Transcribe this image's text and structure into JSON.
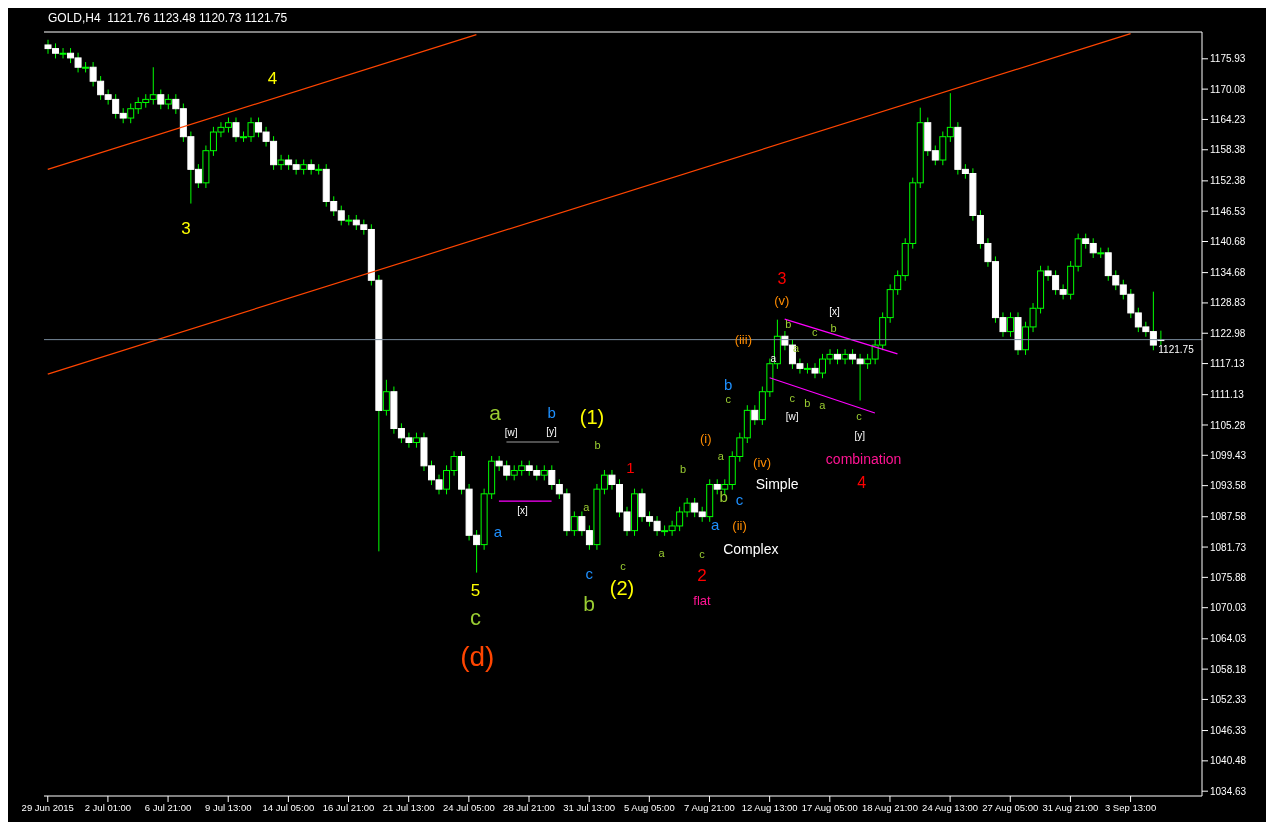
{
  "chart_data": {
    "type": "candlestick",
    "title": "GOLD,H4  1121.76 1123.48 1120.73 1121.75",
    "color": "#00ff00",
    "categories": [
      "29 Jun 2015",
      null,
      null,
      null,
      null,
      null,
      null,
      null,
      "2 Jul 01:00",
      null,
      null,
      null,
      null,
      null,
      null,
      null,
      "6 Jul 21:00",
      null,
      null,
      null,
      null,
      null,
      null,
      null,
      "9 Jul 13:00",
      null,
      null,
      null,
      null,
      null,
      null,
      null,
      "14 Jul 05:00",
      null,
      null,
      null,
      null,
      null,
      null,
      null,
      "16 Jul 21:00",
      null,
      null,
      null,
      null,
      null,
      null,
      null,
      "21 Jul 13:00",
      null,
      null,
      null,
      null,
      null,
      null,
      null,
      "24 Jul 05:00",
      null,
      null,
      null,
      null,
      null,
      null,
      null,
      "28 Jul 21:00",
      null,
      null,
      null,
      null,
      null,
      null,
      null,
      "31 Jul 13:00",
      null,
      null,
      null,
      null,
      null,
      null,
      null,
      "5 Aug 05:00",
      null,
      null,
      null,
      null,
      null,
      null,
      null,
      "7 Aug 21:00",
      null,
      null,
      null,
      null,
      null,
      null,
      null,
      "12 Aug 13:00",
      null,
      null,
      null,
      null,
      null,
      null,
      null,
      "17 Aug 05:00",
      null,
      null,
      null,
      null,
      null,
      null,
      null,
      "18 Aug 21:00",
      null,
      null,
      null,
      null,
      null,
      null,
      null,
      "24 Aug 13:00",
      null,
      null,
      null,
      null,
      null,
      null,
      null,
      "27 Aug 05:00",
      null,
      null,
      null,
      null,
      null,
      null,
      null,
      "31 Aug 21:00",
      null,
      null,
      null,
      null,
      null,
      null,
      null,
      "3 Sep 13:00",
      null,
      null,
      null,
      null
    ],
    "ohlc": [
      [
        1178.6,
        1179.6,
        1176.9,
        1177.9
      ],
      [
        1177.9,
        1178.9,
        1176.0,
        1177.0
      ],
      [
        1177.0,
        1178.0,
        1176.0,
        1177.0
      ],
      [
        1177.0,
        1178.0,
        1175.1,
        1176.1
      ],
      [
        1176.1,
        1177.1,
        1173.3,
        1174.3
      ],
      [
        1174.3,
        1175.3,
        1173.3,
        1174.3
      ],
      [
        1174.3,
        1175.3,
        1170.6,
        1171.6
      ],
      [
        1171.6,
        1172.6,
        1168.0,
        1169.0
      ],
      [
        1169.0,
        1170.0,
        1167.1,
        1168.1
      ],
      [
        1168.1,
        1169.1,
        1164.4,
        1165.4
      ],
      [
        1165.4,
        1166.4,
        1163.5,
        1164.5
      ],
      [
        1164.5,
        1167.3,
        1163.5,
        1166.3
      ],
      [
        1166.3,
        1168.5,
        1165.3,
        1167.5
      ],
      [
        1167.5,
        1169.1,
        1166.5,
        1168.1
      ],
      [
        1168.1,
        1174.3,
        1167.1,
        1169.0
      ],
      [
        1169.0,
        1170.0,
        1166.2,
        1167.2
      ],
      [
        1167.2,
        1169.1,
        1166.2,
        1168.1
      ],
      [
        1168.1,
        1169.1,
        1165.3,
        1166.3
      ],
      [
        1166.3,
        1167.3,
        1159.9,
        1160.9
      ],
      [
        1160.9,
        1161.9,
        1148.0,
        1154.6
      ],
      [
        1154.6,
        1155.6,
        1151.0,
        1152.0
      ],
      [
        1152.0,
        1159.2,
        1151.0,
        1158.2
      ],
      [
        1158.2,
        1162.8,
        1157.2,
        1161.8
      ],
      [
        1161.8,
        1163.7,
        1160.8,
        1162.7
      ],
      [
        1162.7,
        1164.6,
        1161.7,
        1163.6
      ],
      [
        1163.6,
        1164.6,
        1159.9,
        1160.9
      ],
      [
        1160.9,
        1161.9,
        1159.9,
        1160.9
      ],
      [
        1160.9,
        1164.6,
        1159.9,
        1163.6
      ],
      [
        1163.6,
        1164.6,
        1160.8,
        1161.8
      ],
      [
        1161.8,
        1162.8,
        1159.0,
        1160.0
      ],
      [
        1160.0,
        1161.0,
        1154.5,
        1155.5
      ],
      [
        1155.5,
        1157.4,
        1154.5,
        1156.4
      ],
      [
        1156.4,
        1157.4,
        1154.5,
        1155.5
      ],
      [
        1155.5,
        1156.5,
        1153.6,
        1154.6
      ],
      [
        1154.6,
        1156.5,
        1153.6,
        1155.5
      ],
      [
        1155.5,
        1156.5,
        1153.6,
        1154.6
      ],
      [
        1154.6,
        1155.6,
        1153.6,
        1154.6
      ],
      [
        1154.6,
        1155.6,
        1147.4,
        1148.4
      ],
      [
        1148.4,
        1149.4,
        1145.6,
        1146.6
      ],
      [
        1146.6,
        1147.6,
        1143.8,
        1144.8
      ],
      [
        1144.8,
        1145.8,
        1143.8,
        1144.8
      ],
      [
        1144.8,
        1145.8,
        1142.9,
        1143.9
      ],
      [
        1143.9,
        1144.9,
        1142.0,
        1143.0
      ],
      [
        1143.0,
        1144.0,
        1132.2,
        1133.2
      ],
      [
        1133.2,
        1134.2,
        1080.9,
        1108.1
      ],
      [
        1108.1,
        1114.0,
        1107.1,
        1111.7
      ],
      [
        1111.7,
        1112.7,
        1103.6,
        1104.6
      ],
      [
        1104.6,
        1105.6,
        1101.8,
        1102.8
      ],
      [
        1102.8,
        1103.8,
        1100.9,
        1101.9
      ],
      [
        1101.9,
        1103.8,
        1100.9,
        1102.8
      ],
      [
        1102.8,
        1103.8,
        1096.4,
        1097.4
      ],
      [
        1097.4,
        1098.4,
        1093.7,
        1094.7
      ],
      [
        1094.7,
        1095.7,
        1091.9,
        1092.9
      ],
      [
        1092.9,
        1097.5,
        1091.9,
        1096.5
      ],
      [
        1096.5,
        1100.2,
        1095.5,
        1099.2
      ],
      [
        1099.2,
        1100.2,
        1091.9,
        1092.9
      ],
      [
        1092.9,
        1093.9,
        1083.0,
        1084.0
      ],
      [
        1084.0,
        1085.0,
        1076.8,
        1082.2
      ],
      [
        1082.2,
        1093.0,
        1081.2,
        1092.0
      ],
      [
        1092.0,
        1099.3,
        1091.0,
        1098.3
      ],
      [
        1098.3,
        1099.3,
        1096.4,
        1097.4
      ],
      [
        1097.4,
        1098.4,
        1094.6,
        1095.6
      ],
      [
        1095.6,
        1097.5,
        1094.6,
        1096.5
      ],
      [
        1096.5,
        1098.4,
        1095.5,
        1097.4
      ],
      [
        1097.4,
        1098.4,
        1095.5,
        1096.5
      ],
      [
        1096.5,
        1097.5,
        1094.6,
        1095.6
      ],
      [
        1095.6,
        1097.5,
        1094.6,
        1096.5
      ],
      [
        1096.5,
        1097.5,
        1092.8,
        1093.8
      ],
      [
        1093.8,
        1094.8,
        1091.0,
        1092.0
      ],
      [
        1092.0,
        1093.0,
        1083.9,
        1084.9
      ],
      [
        1084.9,
        1088.6,
        1083.9,
        1087.6
      ],
      [
        1087.6,
        1088.6,
        1083.9,
        1084.9
      ],
      [
        1084.9,
        1085.9,
        1081.2,
        1082.2
      ],
      [
        1082.2,
        1093.9,
        1081.2,
        1092.9
      ],
      [
        1092.9,
        1096.6,
        1091.9,
        1095.6
      ],
      [
        1095.6,
        1096.6,
        1092.8,
        1093.8
      ],
      [
        1093.8,
        1094.8,
        1087.5,
        1088.5
      ],
      [
        1088.5,
        1089.5,
        1083.9,
        1084.9
      ],
      [
        1084.9,
        1093.0,
        1083.9,
        1092.0
      ],
      [
        1092.0,
        1093.0,
        1086.6,
        1087.6
      ],
      [
        1087.6,
        1088.6,
        1085.7,
        1086.7
      ],
      [
        1086.7,
        1087.7,
        1083.9,
        1084.9
      ],
      [
        1084.9,
        1085.9,
        1083.9,
        1084.9
      ],
      [
        1084.9,
        1086.8,
        1083.9,
        1085.8
      ],
      [
        1085.8,
        1089.5,
        1084.8,
        1088.5
      ],
      [
        1088.5,
        1091.2,
        1087.5,
        1090.2
      ],
      [
        1090.2,
        1091.2,
        1087.5,
        1088.5
      ],
      [
        1088.5,
        1089.5,
        1086.6,
        1087.6
      ],
      [
        1087.6,
        1094.8,
        1086.6,
        1093.8
      ],
      [
        1093.8,
        1094.8,
        1091.9,
        1092.9
      ],
      [
        1092.9,
        1094.8,
        1091.9,
        1093.8
      ],
      [
        1093.8,
        1100.2,
        1092.8,
        1099.2
      ],
      [
        1099.2,
        1103.8,
        1098.2,
        1102.8
      ],
      [
        1102.8,
        1109.1,
        1101.8,
        1108.1
      ],
      [
        1108.1,
        1109.1,
        1105.3,
        1106.3
      ],
      [
        1106.3,
        1112.7,
        1105.3,
        1111.7
      ],
      [
        1111.7,
        1118.1,
        1110.7,
        1117.1
      ],
      [
        1117.1,
        1125.6,
        1116.1,
        1122.4
      ],
      [
        1122.4,
        1123.4,
        1119.7,
        1120.7
      ],
      [
        1120.7,
        1121.7,
        1116.1,
        1117.1
      ],
      [
        1117.1,
        1118.1,
        1115.2,
        1116.2
      ],
      [
        1116.2,
        1117.2,
        1115.2,
        1116.2
      ],
      [
        1116.2,
        1117.2,
        1114.3,
        1115.3
      ],
      [
        1115.3,
        1119.0,
        1114.3,
        1118.0
      ],
      [
        1118.0,
        1119.9,
        1117.0,
        1118.9
      ],
      [
        1118.9,
        1119.9,
        1117.0,
        1118.0
      ],
      [
        1118.0,
        1119.9,
        1117.0,
        1118.9
      ],
      [
        1118.9,
        1119.9,
        1117.0,
        1118.0
      ],
      [
        1118.0,
        1119.0,
        1110.0,
        1117.1
      ],
      [
        1117.1,
        1119.0,
        1116.1,
        1118.0
      ],
      [
        1118.0,
        1121.7,
        1117.0,
        1120.7
      ],
      [
        1120.7,
        1127.0,
        1119.7,
        1126.0
      ],
      [
        1126.0,
        1132.4,
        1125.0,
        1131.4
      ],
      [
        1131.4,
        1135.1,
        1130.4,
        1134.1
      ],
      [
        1134.1,
        1141.3,
        1133.1,
        1140.3
      ],
      [
        1140.3,
        1153.0,
        1139.3,
        1152.0
      ],
      [
        1152.0,
        1166.5,
        1151.0,
        1163.6
      ],
      [
        1163.6,
        1164.6,
        1157.2,
        1158.2
      ],
      [
        1158.2,
        1159.2,
        1155.4,
        1156.4
      ],
      [
        1156.4,
        1161.9,
        1155.4,
        1160.9
      ],
      [
        1160.9,
        1169.3,
        1159.9,
        1162.7
      ],
      [
        1162.7,
        1163.7,
        1153.6,
        1154.6
      ],
      [
        1154.6,
        1155.6,
        1152.8,
        1153.8
      ],
      [
        1153.8,
        1154.8,
        1144.7,
        1145.7
      ],
      [
        1145.7,
        1146.7,
        1139.3,
        1140.3
      ],
      [
        1140.3,
        1141.3,
        1135.8,
        1136.8
      ],
      [
        1136.8,
        1137.8,
        1125.0,
        1126.0
      ],
      [
        1126.0,
        1127.0,
        1122.3,
        1123.3
      ],
      [
        1123.3,
        1127.0,
        1122.3,
        1126.0
      ],
      [
        1126.0,
        1127.0,
        1118.8,
        1119.8
      ],
      [
        1119.8,
        1125.2,
        1118.8,
        1124.2
      ],
      [
        1124.2,
        1128.8,
        1123.2,
        1127.8
      ],
      [
        1127.8,
        1136.0,
        1126.8,
        1135.0
      ],
      [
        1135.0,
        1136.0,
        1133.1,
        1134.1
      ],
      [
        1134.1,
        1135.1,
        1130.4,
        1131.4
      ],
      [
        1131.4,
        1132.4,
        1129.5,
        1130.5
      ],
      [
        1130.5,
        1136.9,
        1129.5,
        1135.9
      ],
      [
        1135.9,
        1142.2,
        1134.9,
        1141.2
      ],
      [
        1141.2,
        1142.2,
        1139.3,
        1140.3
      ],
      [
        1140.3,
        1141.3,
        1137.5,
        1138.5
      ],
      [
        1138.5,
        1139.5,
        1137.5,
        1138.5
      ],
      [
        1138.5,
        1139.5,
        1133.1,
        1134.1
      ],
      [
        1134.1,
        1135.1,
        1131.3,
        1132.3
      ],
      [
        1132.3,
        1133.3,
        1129.5,
        1130.5
      ],
      [
        1130.5,
        1131.5,
        1125.9,
        1126.9
      ],
      [
        1126.9,
        1127.9,
        1123.2,
        1124.2
      ],
      [
        1124.2,
        1125.2,
        1122.3,
        1123.3
      ],
      [
        1123.3,
        1131.0,
        1119.7,
        1120.7
      ],
      [
        1121.76,
        1123.48,
        1120.73,
        1121.75
      ]
    ],
    "series": [
      {
        "type": "line",
        "color": "#ff4500",
        "values": [
          1115.1,
          null,
          null,
          null,
          null,
          null,
          null,
          null,
          null,
          null,
          null,
          null,
          null,
          null,
          null,
          null,
          null,
          null,
          null,
          null,
          null,
          null,
          null,
          null,
          null,
          null,
          null,
          null,
          null,
          null,
          null,
          null,
          null,
          null,
          null,
          null,
          null,
          null,
          null,
          null,
          null,
          null,
          null,
          null,
          null,
          null,
          null,
          null,
          null,
          null,
          null,
          null,
          null,
          null,
          null,
          null,
          null,
          null,
          null,
          null,
          null,
          null,
          null,
          null,
          null,
          null,
          null,
          null,
          null,
          null,
          null,
          null,
          null,
          null,
          null,
          null,
          null,
          null,
          null,
          null,
          null,
          null,
          null,
          null,
          null,
          null,
          null,
          null,
          null,
          null,
          null,
          null,
          null,
          null,
          null,
          null,
          null,
          null,
          null,
          null,
          null,
          null,
          null,
          null,
          null,
          null,
          null,
          null,
          null,
          null,
          null,
          null,
          null,
          null,
          null,
          null,
          null,
          null,
          null,
          null,
          null,
          null,
          null,
          null,
          null,
          null,
          null,
          null,
          null,
          null,
          null,
          null,
          null,
          null,
          null,
          null,
          null,
          null,
          null,
          null,
          null,
          null,
          null,
          null,
          1180.8,
          null,
          null,
          null,
          null
        ]
      },
      {
        "type": "line",
        "color": "#ff4500",
        "values": [
          1154.6,
          null,
          null,
          null,
          null,
          null,
          null,
          null,
          null,
          null,
          null,
          null,
          null,
          null,
          null,
          null,
          null,
          null,
          null,
          null,
          null,
          null,
          null,
          null,
          null,
          null,
          null,
          null,
          null,
          null,
          null,
          null,
          null,
          null,
          null,
          null,
          null,
          null,
          null,
          null,
          null,
          null,
          null,
          null,
          null,
          null,
          null,
          null,
          null,
          null,
          null,
          null,
          null,
          null,
          null,
          null,
          null,
          1180.6,
          null,
          null,
          null,
          null,
          null,
          null,
          null,
          null,
          null,
          null,
          null,
          null,
          null,
          null,
          null,
          null,
          null,
          null,
          null,
          null,
          null,
          null,
          null,
          null,
          null,
          null,
          null,
          null,
          null,
          null,
          null,
          null,
          null,
          null,
          null,
          null,
          null,
          null,
          null,
          null,
          null,
          null,
          null,
          null,
          null,
          null,
          null,
          null,
          null,
          null,
          null,
          null,
          null,
          null,
          null,
          null,
          null,
          null,
          null,
          null,
          null,
          null,
          null,
          null,
          null,
          null,
          null,
          null,
          null,
          null,
          null,
          null,
          null,
          null,
          null,
          null,
          null,
          null,
          null,
          null,
          null,
          null,
          null,
          null,
          null,
          null,
          null,
          null,
          null,
          null,
          null
        ]
      },
      {
        "type": "line",
        "color": "#ff00ff",
        "values": [
          null,
          null,
          null,
          null,
          null,
          null,
          null,
          null,
          null,
          null,
          null,
          null,
          null,
          null,
          null,
          null,
          null,
          null,
          null,
          null,
          null,
          null,
          null,
          null,
          null,
          null,
          null,
          null,
          null,
          null,
          null,
          null,
          null,
          null,
          null,
          null,
          null,
          null,
          null,
          null,
          null,
          null,
          null,
          null,
          null,
          null,
          null,
          null,
          null,
          null,
          null,
          null,
          null,
          null,
          null,
          null,
          null,
          null,
          null,
          null,
          null,
          null,
          null,
          null,
          null,
          null,
          null,
          null,
          null,
          null,
          null,
          null,
          null,
          null,
          null,
          null,
          null,
          null,
          null,
          null,
          null,
          null,
          null,
          null,
          null,
          null,
          null,
          null,
          null,
          null,
          null,
          null,
          null,
          null,
          null,
          null,
          null,
          null,
          1125.7,
          null,
          null,
          null,
          null,
          null,
          null,
          null,
          null,
          null,
          null,
          null,
          null,
          null,
          null,
          1119.0,
          null,
          null,
          null,
          null,
          null,
          null,
          null,
          null,
          null,
          null,
          null,
          null,
          null,
          null,
          null,
          null,
          null,
          null,
          null,
          null,
          null,
          null,
          null,
          null,
          null,
          null,
          null,
          null,
          null,
          null,
          null,
          null,
          null,
          null,
          null
        ]
      },
      {
        "type": "line",
        "color": "#ff00ff",
        "values": [
          null,
          null,
          null,
          null,
          null,
          null,
          null,
          null,
          null,
          null,
          null,
          null,
          null,
          null,
          null,
          null,
          null,
          null,
          null,
          null,
          null,
          null,
          null,
          null,
          null,
          null,
          null,
          null,
          null,
          null,
          null,
          null,
          null,
          null,
          null,
          null,
          null,
          null,
          null,
          null,
          null,
          null,
          null,
          null,
          null,
          null,
          null,
          null,
          null,
          null,
          null,
          null,
          null,
          null,
          null,
          null,
          null,
          null,
          null,
          null,
          null,
          null,
          null,
          null,
          null,
          null,
          null,
          null,
          null,
          null,
          null,
          null,
          null,
          null,
          null,
          null,
          null,
          null,
          null,
          null,
          null,
          null,
          null,
          null,
          null,
          null,
          null,
          null,
          null,
          null,
          null,
          null,
          null,
          null,
          null,
          null,
          1114.4,
          null,
          null,
          null,
          null,
          null,
          null,
          null,
          null,
          null,
          null,
          null,
          null,
          null,
          1107.6,
          null,
          null,
          null,
          null,
          null,
          null,
          null,
          null,
          null,
          null,
          null,
          null,
          null,
          null,
          null,
          null,
          null,
          null,
          null,
          null,
          null,
          null,
          null,
          null,
          null,
          null,
          null,
          null,
          null,
          null,
          null,
          null,
          null,
          null,
          null,
          null,
          null,
          null
        ]
      },
      {
        "type": "line",
        "color": "#ff00ff",
        "values": [
          null,
          null,
          null,
          null,
          null,
          null,
          null,
          null,
          null,
          null,
          null,
          null,
          null,
          null,
          null,
          null,
          null,
          null,
          null,
          null,
          null,
          null,
          null,
          null,
          null,
          null,
          null,
          null,
          null,
          null,
          null,
          null,
          null,
          null,
          null,
          null,
          null,
          null,
          null,
          null,
          null,
          null,
          null,
          null,
          null,
          null,
          null,
          null,
          null,
          null,
          null,
          null,
          null,
          null,
          null,
          null,
          null,
          null,
          null,
          null,
          1090.6,
          null,
          null,
          null,
          null,
          null,
          null,
          1090.6,
          null,
          null,
          null,
          null,
          null,
          null,
          null,
          null,
          null,
          null,
          null,
          null,
          null,
          null,
          null,
          null,
          null,
          null,
          null,
          null,
          null,
          null,
          null,
          null,
          null,
          null,
          null,
          null,
          null,
          null,
          null,
          null,
          null,
          null,
          null,
          null,
          null,
          null,
          null,
          null,
          null,
          null,
          null,
          null,
          null,
          null,
          null,
          null,
          null,
          null,
          null,
          null,
          null,
          null,
          null,
          null,
          null,
          null,
          null,
          null,
          null,
          null,
          null,
          null,
          null,
          null,
          null,
          null,
          null,
          null,
          null,
          null,
          null,
          null,
          null,
          null,
          null,
          null,
          null,
          null,
          null
        ]
      },
      {
        "type": "line",
        "color": "#9e9e9e",
        "values": [
          null,
          null,
          null,
          null,
          null,
          null,
          null,
          null,
          null,
          null,
          null,
          null,
          null,
          null,
          null,
          null,
          null,
          null,
          null,
          null,
          null,
          null,
          null,
          null,
          null,
          null,
          null,
          null,
          null,
          null,
          null,
          null,
          null,
          null,
          null,
          null,
          null,
          null,
          null,
          null,
          null,
          null,
          null,
          null,
          null,
          null,
          null,
          null,
          null,
          null,
          null,
          null,
          null,
          null,
          null,
          null,
          null,
          null,
          null,
          null,
          null,
          1102.0,
          null,
          null,
          null,
          null,
          null,
          null,
          1102.0,
          null,
          null,
          null,
          null,
          null,
          null,
          null,
          null,
          null,
          null,
          null,
          null,
          null,
          null,
          null,
          null,
          null,
          null,
          null,
          null,
          null,
          null,
          null,
          null,
          null,
          null,
          null,
          null,
          null,
          null,
          null,
          null,
          null,
          null,
          null,
          null,
          null,
          null,
          null,
          null,
          null,
          null,
          null,
          null,
          null,
          null,
          null,
          null,
          null,
          null,
          null,
          null,
          null,
          null,
          null,
          null,
          null,
          null,
          null,
          null,
          null,
          null,
          null,
          null,
          null,
          null,
          null,
          null,
          null,
          null,
          null,
          null,
          null,
          null,
          null,
          null,
          null,
          null,
          null,
          null
        ]
      }
    ],
    "colors": [
      "#ffffff",
      "#ffffff",
      "#00ff00",
      "#ffffff",
      "#ffffff",
      "#00ff00",
      "#ffffff",
      "#ffffff",
      "#ffffff",
      "#ffffff",
      "#ffffff",
      "#00ff00",
      "#00ff00",
      "#00ff00",
      "#00ff00",
      "#ffffff",
      "#00ff00",
      "#ffffff",
      "#ffffff",
      "#ffffff",
      "#ffffff",
      "#00ff00",
      "#00ff00",
      "#00ff00",
      "#00ff00",
      "#ffffff",
      "#00ff00",
      "#00ff00",
      "#ffffff",
      "#ffffff",
      "#ffffff",
      "#00ff00",
      "#ffffff",
      "#ffffff",
      "#00ff00",
      "#ffffff",
      "#00ff00",
      "#ffffff",
      "#ffffff",
      "#ffffff",
      "#00ff00",
      "#ffffff",
      "#ffffff",
      "#ffffff",
      "#ffffff",
      "#00ff00",
      "#ffffff",
      "#ffffff",
      "#ffffff",
      "#00ff00",
      "#ffffff",
      "#ffffff",
      "#ffffff",
      "#00ff00",
      "#00ff00",
      "#ffffff",
      "#ffffff",
      "#ffffff",
      "#00ff00",
      "#00ff00",
      "#ffffff",
      "#ffffff",
      "#00ff00",
      "#00ff00",
      "#ffffff",
      "#ffffff",
      "#00ff00",
      "#ffffff",
      "#ffffff",
      "#ffffff",
      "#00ff00",
      "#ffffff",
      "#ffffff",
      "#00ff00",
      "#00ff00",
      "#ffffff",
      "#ffffff",
      "#ffffff",
      "#00ff00",
      "#ffffff",
      "#ffffff",
      "#ffffff",
      "#00ff00",
      "#00ff00",
      "#00ff00",
      "#00ff00",
      "#ffffff",
      "#ffffff",
      "#00ff00",
      "#ffffff",
      "#00ff00",
      "#00ff00",
      "#00ff00",
      "#00ff00",
      "#ffffff",
      "#00ff00",
      "#00ff00",
      "#00ff00",
      "#ffffff",
      "#ffffff",
      "#ffffff",
      "#00ff00",
      "#ffffff",
      "#00ff00",
      "#00ff00",
      "#ffffff",
      "#00ff00",
      "#ffffff",
      "#ffffff",
      "#00ff00",
      "#00ff00",
      "#00ff00",
      "#00ff00",
      "#00ff00",
      "#00ff00",
      "#00ff00",
      "#00ff00",
      "#ffffff",
      "#ffffff",
      "#00ff00",
      "#00ff00",
      "#ffffff",
      "#ffffff",
      "#ffffff",
      "#ffffff",
      "#ffffff",
      "#ffffff",
      "#ffffff",
      "#00ff00",
      "#ffffff",
      "#00ff00",
      "#00ff00",
      "#00ff00",
      "#ffffff",
      "#ffffff",
      "#ffffff",
      "#00ff00",
      "#00ff00",
      "#ffffff",
      "#ffffff",
      "#00ff00",
      "#ffffff",
      "#ffffff",
      "#ffffff",
      "#ffffff",
      "#ffffff",
      "#ffffff",
      "#ffffff",
      "#ffffff"
    ],
    "ylim": [
      1033.7,
      1181.1
    ],
    "yticks": [
      1175.93,
      1170.08,
      1164.23,
      1158.38,
      1152.38,
      1146.53,
      1140.68,
      1134.68,
      1128.83,
      1122.98,
      1117.13,
      1111.13,
      1105.28,
      1099.43,
      1093.58,
      1087.58,
      1081.73,
      1075.88,
      1070.03,
      1064.03,
      1058.18,
      1052.33,
      1046.33,
      1040.48,
      1034.63
    ],
    "ref_lines": [
      {
        "axis": "y",
        "value": 1121.75,
        "label": "1121.75",
        "color": "#778899"
      }
    ],
    "annotations": [
      "4",
      "3",
      "5",
      "c",
      "(d)",
      "a",
      "a",
      "[w]",
      "b",
      "[y]",
      "[x]",
      "(1)",
      "b",
      "a",
      "c",
      "b",
      "c",
      "(2)",
      "1",
      "b",
      "a",
      "c",
      "2",
      "flat",
      "(i)",
      "a",
      "b",
      "a",
      "c",
      "(ii)",
      "Complex",
      "b",
      "c",
      "(iv)",
      "Simple",
      "(iii)",
      "3",
      "(v)",
      "b",
      "a",
      "a",
      "[x]",
      "c",
      "b",
      "c",
      "b",
      "a",
      "[w]",
      "c",
      "[y]",
      "combination",
      "4"
    ]
  }
}
